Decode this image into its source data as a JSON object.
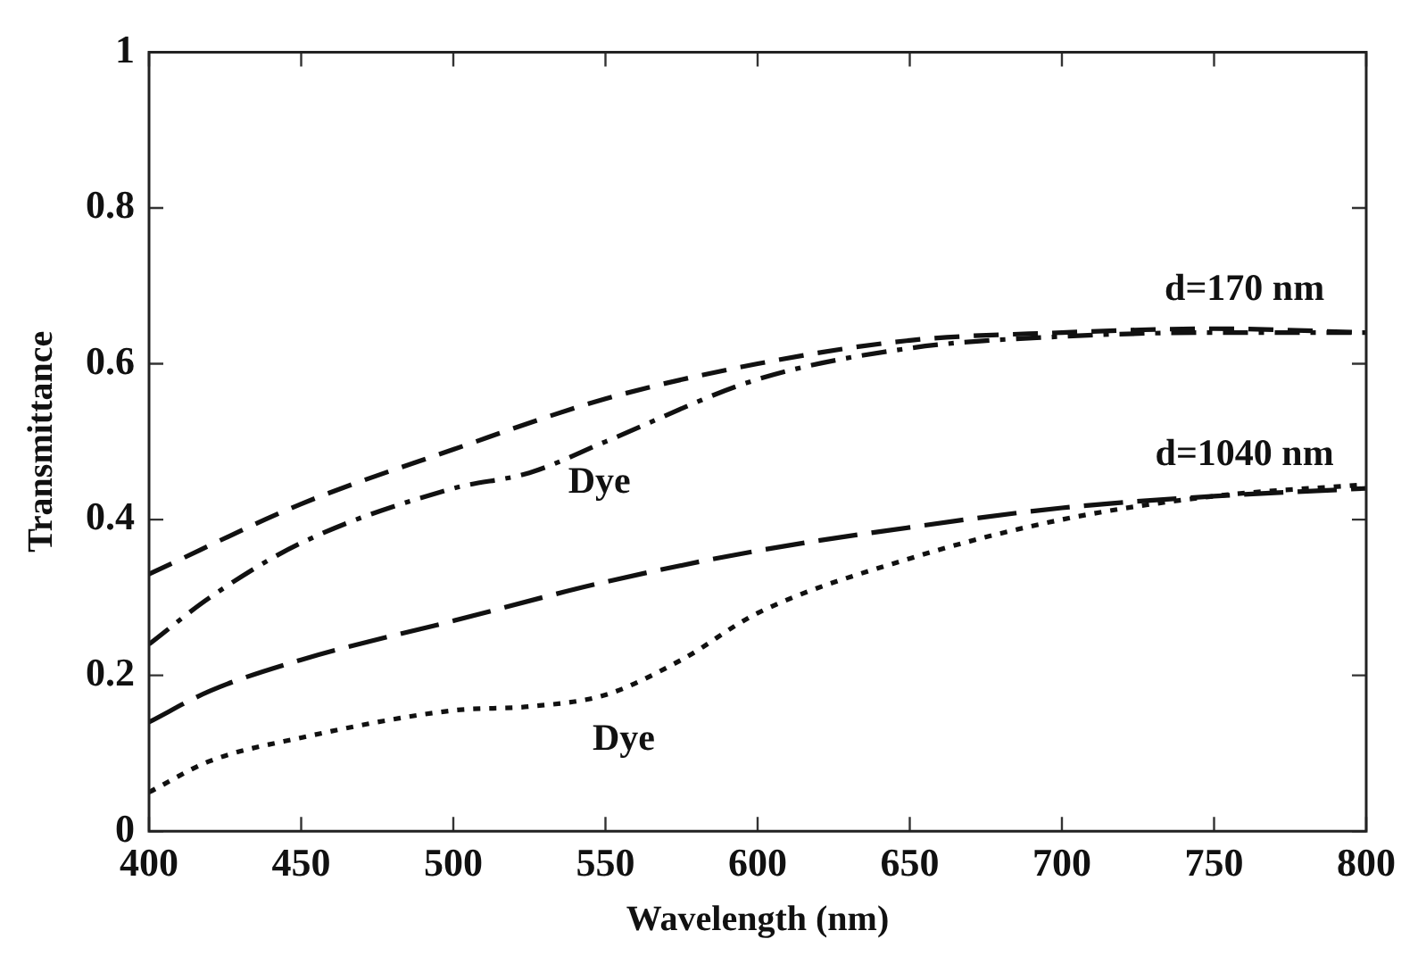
{
  "chart_data": {
    "type": "line",
    "xlabel": "Wavelength (nm)",
    "ylabel": "Transmittance",
    "xlim": [
      400,
      800
    ],
    "xticks": [
      400,
      450,
      500,
      550,
      600,
      650,
      700,
      750,
      800
    ],
    "ylim": [
      0,
      1
    ],
    "yticks": [
      0,
      0.2,
      0.4,
      0.6,
      0.8,
      1
    ],
    "grid": false,
    "legend": false,
    "marker": "none",
    "series": [
      {
        "color": "#111111",
        "line_style": "dashed",
        "x": [
          400,
          450,
          500,
          550,
          600,
          650,
          700,
          750,
          800
        ],
        "values": [
          0.33,
          0.42,
          0.49,
          0.555,
          0.6,
          0.63,
          0.64,
          0.645,
          0.64
        ]
      },
      {
        "color": "#111111",
        "line_style": "dashdot",
        "x": [
          400,
          420,
          450,
          500,
          525,
          550,
          600,
          650,
          700,
          750,
          800
        ],
        "values": [
          0.24,
          0.3,
          0.37,
          0.44,
          0.46,
          0.5,
          0.58,
          0.62,
          0.635,
          0.64,
          0.64
        ]
      },
      {
        "color": "#111111",
        "line_style": "longdash",
        "x": [
          400,
          420,
          450,
          500,
          550,
          600,
          650,
          700,
          750,
          800
        ],
        "values": [
          0.14,
          0.18,
          0.22,
          0.27,
          0.32,
          0.36,
          0.39,
          0.415,
          0.43,
          0.44
        ]
      },
      {
        "color": "#111111",
        "line_style": "dotted",
        "x": [
          400,
          420,
          450,
          500,
          525,
          550,
          575,
          600,
          650,
          700,
          750,
          800
        ],
        "values": [
          0.05,
          0.09,
          0.12,
          0.155,
          0.16,
          0.175,
          0.22,
          0.28,
          0.35,
          0.4,
          0.43,
          0.445
        ]
      }
    ],
    "annotations": [
      "d=170 nm",
      "Dye",
      "d=1040 nm",
      "Dye"
    ]
  }
}
